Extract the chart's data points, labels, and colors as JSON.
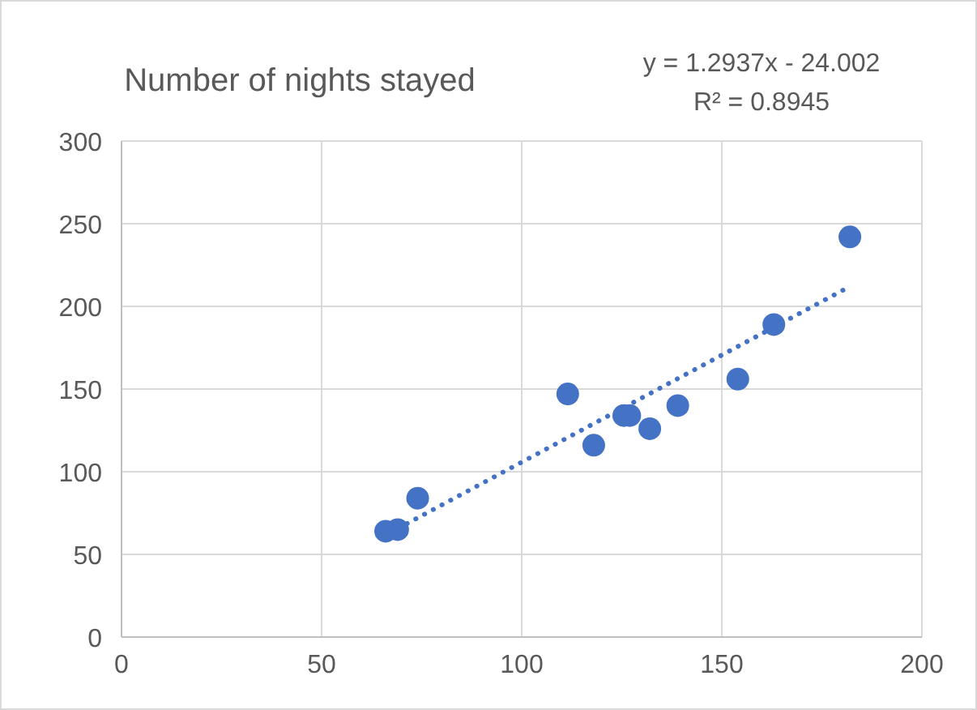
{
  "chart_data": {
    "type": "scatter",
    "title": "Number of nights stayed",
    "annotations": [
      "y = 1.2937x - 24.002",
      "R² = 0.8945"
    ],
    "xlim": [
      0,
      200
    ],
    "xticks": [
      0,
      50,
      100,
      150,
      200
    ],
    "ylim": [
      0,
      300
    ],
    "yticks": [
      0,
      50,
      100,
      150,
      200,
      250,
      300
    ],
    "grid": true,
    "marker": "circle",
    "series": [
      {
        "color": "#4472c4",
        "x": [
          66,
          69,
          74,
          111.5,
          118,
          125.5,
          127,
          132,
          139,
          154,
          163,
          182
        ],
        "values": [
          64,
          65,
          84,
          147,
          116,
          134,
          134,
          126,
          140,
          156,
          189,
          242
        ]
      },
      {
        "type": "line",
        "color": "#4472c4",
        "line_style": "dotted",
        "marker": "none",
        "x": [
          67,
          182
        ],
        "values": [
          63,
          212
        ]
      }
    ]
  }
}
